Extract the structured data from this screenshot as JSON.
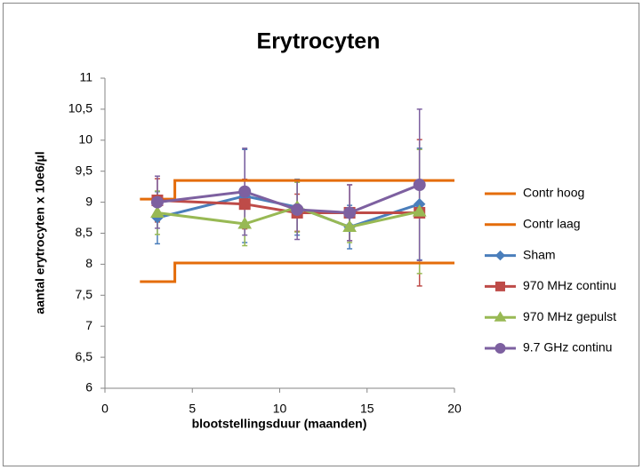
{
  "chart_data": {
    "type": "line",
    "title": "Erytrocyten",
    "x_label": "blootstellingsduur (maanden)",
    "y_label": "aantal erytrocyten x 10e6/µl",
    "xlim": [
      0,
      20
    ],
    "xticks": [
      0,
      5,
      10,
      15,
      20
    ],
    "ylim": [
      6,
      11
    ],
    "yticks": [
      6,
      {
        "value": 6.5,
        "label": "6,5"
      },
      7,
      {
        "value": 7.5,
        "label": "7,5"
      },
      8,
      {
        "value": 8.5,
        "label": "8,5"
      },
      9,
      {
        "value": 9.5,
        "label": "9,5"
      },
      10,
      {
        "value": 10.5,
        "label": "10,5"
      },
      11
    ],
    "legend": "right",
    "series": [
      {
        "name": "Contr hoog",
        "color": "#e46c0a",
        "marker": "none",
        "x": [
          2,
          4,
          4,
          20
        ],
        "values": [
          9.05,
          9.05,
          9.35,
          9.35
        ]
      },
      {
        "name": "Contr laag",
        "color": "#e46c0a",
        "marker": "none",
        "x": [
          2,
          4,
          4,
          20
        ],
        "values": [
          7.72,
          7.72,
          8.02,
          8.02
        ]
      },
      {
        "name": "Sham",
        "color": "#4a7ebb",
        "marker": "diamond",
        "x": [
          3,
          8,
          11,
          14,
          18
        ],
        "values": [
          8.75,
          9.1,
          8.92,
          8.6,
          8.97
        ],
        "errors": [
          0.42,
          0.75,
          0.45,
          0.35,
          0.9
        ]
      },
      {
        "name": "970 MHz continu",
        "color": "#be4b48",
        "marker": "square",
        "x": [
          3,
          8,
          11,
          14,
          18
        ],
        "values": [
          9.03,
          8.97,
          8.83,
          8.83,
          8.83
        ],
        "errors": [
          0.35,
          0.4,
          0.3,
          0.45,
          1.18
        ]
      },
      {
        "name": "970 MHz gepulst",
        "color": "#98b954",
        "marker": "triangle",
        "x": [
          3,
          8,
          11,
          14,
          18
        ],
        "values": [
          8.83,
          8.65,
          8.92,
          8.6,
          8.85
        ],
        "errors": [
          0.35,
          0.35,
          0.4,
          0.25,
          1.0
        ]
      },
      {
        "name": "9.7 GHz continu",
        "color": "#7d60a0",
        "marker": "circle",
        "x": [
          3,
          8,
          11,
          14,
          18
        ],
        "values": [
          9.0,
          9.17,
          8.88,
          8.83,
          9.28
        ],
        "errors": [
          0.42,
          0.7,
          0.48,
          0.45,
          1.22
        ]
      }
    ]
  }
}
